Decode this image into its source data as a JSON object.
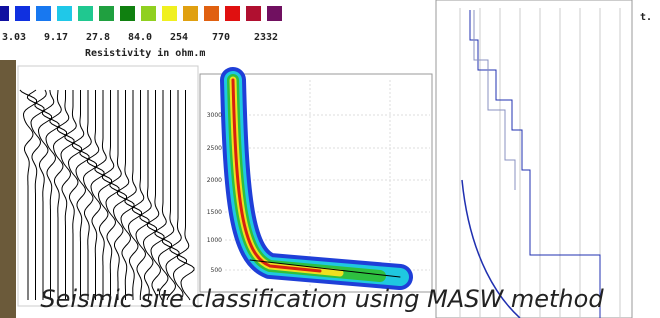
{
  "legend": {
    "labels": [
      "3.03",
      "9.17",
      "27.8",
      "84.0",
      "254",
      "770",
      "2332"
    ],
    "title": "Resistivity in ohm.m"
  },
  "dispersion": {
    "yticks": [
      "3000",
      "2500",
      "2000",
      "1500",
      "1000",
      "500"
    ]
  },
  "caption": "Seismic site classification using MASW method",
  "side_text": "t."
}
